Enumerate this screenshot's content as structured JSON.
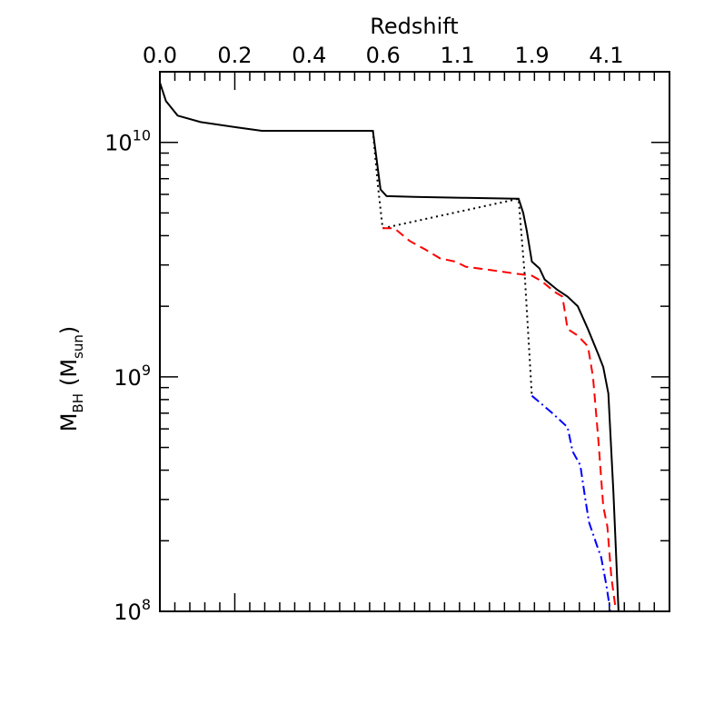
{
  "chart_data": {
    "type": "line",
    "title": "",
    "top_axis_label": "Redshift",
    "top_ticks": [
      {
        "label": "0.0",
        "frac": 0.0
      },
      {
        "label": "0.2",
        "frac": 0.147
      },
      {
        "label": "0.4",
        "frac": 0.293
      },
      {
        "label": "0.6",
        "frac": 0.438
      },
      {
        "label": "1.1",
        "frac": 0.584
      },
      {
        "label": "1.9",
        "frac": 0.73
      },
      {
        "label": "4.1",
        "frac": 0.876
      }
    ],
    "ylabel_main": "M",
    "ylabel_sub": "BH",
    "ylabel_unit_main": "M",
    "ylabel_unit_sub": "sun",
    "yscale": "log",
    "ylim": [
      100000000.0,
      20000000000.0
    ],
    "xlim": [
      0,
      1
    ],
    "y_ticks": [
      {
        "value": 100000000.0,
        "base": "10",
        "exp": "8"
      },
      {
        "value": 1000000000.0,
        "base": "10",
        "exp": "9"
      },
      {
        "value": 10000000000.0,
        "base": "10",
        "exp": "10"
      }
    ],
    "series": [
      {
        "style": "solid",
        "color": "#000000",
        "points": [
          [
            0.0,
            18000000000.0
          ],
          [
            0.012,
            15000000000.0
          ],
          [
            0.035,
            13000000000.0
          ],
          [
            0.08,
            12200000000.0
          ],
          [
            0.15,
            11600000000.0
          ],
          [
            0.2,
            11200000000.0
          ],
          [
            0.3,
            11200000000.0
          ],
          [
            0.418,
            11200000000.0
          ],
          [
            0.433,
            6300000000.0
          ],
          [
            0.445,
            5900000000.0
          ],
          [
            0.5,
            5850000000.0
          ],
          [
            0.6,
            5800000000.0
          ],
          [
            0.7,
            5750000000.0
          ],
          [
            0.704,
            5750000000.0
          ],
          [
            0.713,
            5000000000.0
          ],
          [
            0.72,
            4200000000.0
          ],
          [
            0.73,
            3100000000.0
          ],
          [
            0.745,
            2900000000.0
          ],
          [
            0.755,
            2600000000.0
          ],
          [
            0.78,
            2350000000.0
          ],
          [
            0.8,
            2200000000.0
          ],
          [
            0.82,
            2000000000.0
          ],
          [
            0.84,
            1600000000.0
          ],
          [
            0.86,
            1250000000.0
          ],
          [
            0.87,
            1100000000.0
          ],
          [
            0.88,
            850000000.0
          ],
          [
            0.89,
            320000000.0
          ],
          [
            0.9,
            100000000.0
          ]
        ]
      },
      {
        "style": "dotted",
        "color": "#000000",
        "points": [
          [
            0.418,
            11200000000.0
          ],
          [
            0.428,
            6500000000.0
          ],
          [
            0.437,
            4300000000.0
          ],
          [
            0.704,
            5750000000.0
          ],
          [
            0.716,
            2700000000.0
          ],
          [
            0.73,
            830000000.0
          ]
        ]
      },
      {
        "style": "dashed",
        "color": "#ff0000",
        "points": [
          [
            0.437,
            4300000000.0
          ],
          [
            0.46,
            4300000000.0
          ],
          [
            0.49,
            3800000000.0
          ],
          [
            0.52,
            3500000000.0
          ],
          [
            0.55,
            3200000000.0
          ],
          [
            0.58,
            3100000000.0
          ],
          [
            0.6,
            2950000000.0
          ],
          [
            0.65,
            2850000000.0
          ],
          [
            0.7,
            2750000000.0
          ],
          [
            0.73,
            2700000000.0
          ],
          [
            0.75,
            2550000000.0
          ],
          [
            0.775,
            2300000000.0
          ],
          [
            0.79,
            2200000000.0
          ],
          [
            0.8,
            1600000000.0
          ],
          [
            0.82,
            1500000000.0
          ],
          [
            0.84,
            1350000000.0
          ],
          [
            0.85,
            1000000000.0
          ],
          [
            0.86,
            550000000.0
          ],
          [
            0.87,
            280000000.0
          ],
          [
            0.878,
            230000000.0
          ],
          [
            0.886,
            140000000.0
          ],
          [
            0.895,
            100000000.0
          ]
        ]
      },
      {
        "style": "dashdot",
        "color": "#0000ff",
        "points": [
          [
            0.73,
            830000000.0
          ],
          [
            0.745,
            780000000.0
          ],
          [
            0.77,
            700000000.0
          ],
          [
            0.8,
            610000000.0
          ],
          [
            0.81,
            480000000.0
          ],
          [
            0.825,
            420000000.0
          ],
          [
            0.835,
            300000000.0
          ],
          [
            0.842,
            240000000.0
          ],
          [
            0.858,
            190000000.0
          ],
          [
            0.866,
            170000000.0
          ],
          [
            0.876,
            130000000.0
          ],
          [
            0.884,
            100000000.0
          ]
        ]
      }
    ]
  }
}
